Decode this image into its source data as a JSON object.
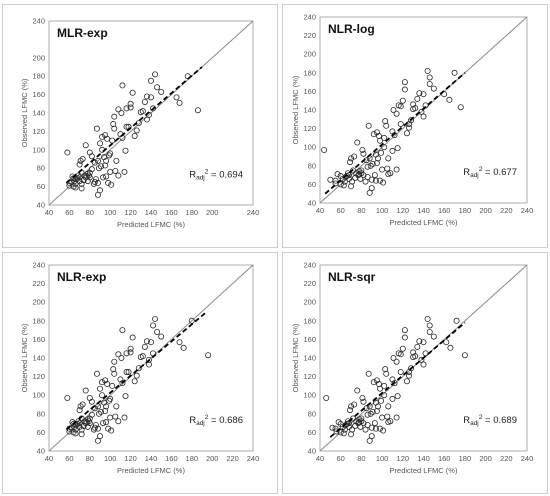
{
  "chart_data": [
    {
      "type": "scatter",
      "title": "MLR-exp",
      "xlabel": "Predicted LFMC (%)",
      "ylabel": "Observed LFMC (%)",
      "xlim": [
        40,
        240
      ],
      "ylim": [
        40,
        240
      ],
      "ticks": [
        40,
        60,
        80,
        100,
        120,
        140,
        160,
        180,
        200,
        240
      ],
      "stat_label": "R",
      "stat_sub": "adj",
      "stat_sup": "2",
      "stat_value": " = 0.694",
      "fit": [
        [
          57,
          64
        ],
        [
          190,
          190
        ]
      ],
      "x": [
        58,
        60,
        62,
        63,
        64,
        65,
        66,
        67,
        68,
        69,
        70,
        70,
        71,
        72,
        72,
        73,
        74,
        75,
        76,
        76,
        77,
        78,
        79,
        80,
        80,
        82,
        84,
        85,
        86,
        87,
        88,
        88,
        89,
        90,
        91,
        92,
        93,
        94,
        95,
        95,
        96,
        97,
        98,
        99,
        100,
        101,
        102,
        103,
        104,
        105,
        106,
        108,
        110,
        111,
        112,
        114,
        115,
        116,
        118,
        120,
        122,
        124,
        126,
        128,
        130,
        132,
        134,
        136,
        138,
        140,
        142,
        144,
        146,
        150,
        165,
        168,
        176,
        186,
        60,
        64,
        66,
        70,
        72,
        74,
        78,
        80,
        82,
        85,
        88,
        90,
        92,
        96,
        100,
        104,
        108,
        112,
        116,
        120,
        136,
        140
      ],
      "y": [
        97,
        61,
        65,
        71,
        60,
        66,
        59,
        68,
        69,
        72,
        70,
        84,
        88,
        63,
        75,
        90,
        67,
        72,
        105,
        70,
        71,
        66,
        72,
        75,
        97,
        93,
        63,
        86,
        68,
        123,
        51,
        88,
        80,
        56,
        82,
        114,
        70,
        92,
        83,
        116,
        88,
        112,
        64,
        94,
        76,
        62,
        110,
        128,
        123,
        77,
        88,
        72,
        117,
        140,
        113,
        76,
        99,
        145,
        125,
        150,
        162,
        115,
        121,
        129,
        141,
        142,
        152,
        158,
        138,
        157,
        145,
        182,
        168,
        163,
        157,
        151,
        180,
        143,
        64,
        69,
        63,
        66,
        58,
        67,
        74,
        70,
        79,
        65,
        64,
        107,
        100,
        71,
        96,
        136,
        144,
        170,
        125,
        146,
        133,
        175
      ]
    },
    {
      "type": "scatter",
      "title": "NLR-log",
      "xlabel": "Predicted LFMC (%)",
      "ylabel": "Observed LFMC (%)",
      "xlim": [
        40,
        240
      ],
      "ylim": [
        40,
        240
      ],
      "ticks": [
        40,
        60,
        80,
        100,
        120,
        140,
        160,
        180,
        200,
        220,
        240
      ],
      "stat_label": "R",
      "stat_sub": "adj",
      "stat_sup": "2",
      "stat_value": " = 0.677",
      "fit": [
        [
          45,
          50
        ],
        [
          180,
          180
        ]
      ],
      "x": [
        44,
        50,
        55,
        57,
        60,
        62,
        63,
        65,
        66,
        67,
        68,
        69,
        70,
        71,
        72,
        73,
        74,
        75,
        76,
        77,
        78,
        79,
        80,
        80,
        81,
        82,
        84,
        85,
        86,
        87,
        88,
        88,
        89,
        90,
        91,
        92,
        93,
        94,
        95,
        95,
        96,
        97,
        98,
        99,
        100,
        101,
        102,
        103,
        104,
        105,
        106,
        108,
        110,
        111,
        112,
        114,
        115,
        116,
        118,
        120,
        122,
        124,
        126,
        128,
        130,
        132,
        134,
        136,
        138,
        140,
        142,
        144,
        146,
        150,
        160,
        165,
        170,
        176,
        55,
        60,
        64,
        68,
        70,
        74,
        78,
        82,
        86,
        90,
        94,
        98,
        102,
        106,
        110,
        114,
        118,
        122,
        126,
        130,
        140,
        146
      ],
      "y": [
        97,
        65,
        61,
        71,
        60,
        66,
        59,
        68,
        69,
        72,
        70,
        84,
        88,
        63,
        75,
        90,
        67,
        72,
        105,
        70,
        71,
        66,
        72,
        75,
        97,
        93,
        63,
        86,
        68,
        123,
        51,
        88,
        80,
        56,
        82,
        114,
        70,
        92,
        83,
        116,
        88,
        112,
        64,
        94,
        76,
        62,
        110,
        128,
        123,
        77,
        88,
        72,
        117,
        140,
        113,
        76,
        99,
        145,
        125,
        150,
        162,
        115,
        121,
        129,
        141,
        142,
        152,
        158,
        138,
        157,
        145,
        182,
        168,
        163,
        157,
        151,
        180,
        143,
        64,
        69,
        63,
        66,
        58,
        67,
        74,
        70,
        79,
        65,
        64,
        107,
        100,
        71,
        96,
        136,
        144,
        170,
        125,
        146,
        133,
        175
      ]
    },
    {
      "type": "scatter",
      "title": "NLR-exp",
      "xlabel": "Predicted LFMC (%)",
      "ylabel": "Observed LFMC (%)",
      "xlim": [
        40,
        240
      ],
      "ylim": [
        40,
        240
      ],
      "ticks": [
        40,
        60,
        80,
        100,
        120,
        140,
        160,
        180,
        200,
        220,
        240
      ],
      "stat_label": "R",
      "stat_sub": "adj",
      "stat_sup": "2",
      "stat_value": " = 0.686",
      "fit": [
        [
          57,
          63
        ],
        [
          195,
          190
        ]
      ],
      "x": [
        58,
        60,
        62,
        63,
        64,
        65,
        66,
        67,
        68,
        69,
        70,
        70,
        71,
        72,
        72,
        73,
        74,
        75,
        76,
        76,
        77,
        78,
        79,
        80,
        80,
        82,
        84,
        85,
        86,
        87,
        88,
        88,
        89,
        90,
        91,
        92,
        93,
        94,
        95,
        95,
        96,
        97,
        98,
        99,
        100,
        101,
        102,
        103,
        104,
        105,
        106,
        108,
        110,
        111,
        112,
        114,
        115,
        116,
        118,
        120,
        122,
        124,
        126,
        128,
        130,
        132,
        134,
        136,
        138,
        140,
        142,
        144,
        146,
        150,
        168,
        172,
        180,
        196,
        60,
        64,
        66,
        70,
        72,
        74,
        78,
        80,
        82,
        85,
        88,
        90,
        92,
        96,
        100,
        104,
        108,
        112,
        116,
        120,
        138,
        142
      ],
      "y": [
        97,
        61,
        65,
        71,
        60,
        66,
        59,
        68,
        69,
        72,
        70,
        84,
        88,
        63,
        75,
        90,
        67,
        72,
        105,
        70,
        71,
        66,
        72,
        75,
        97,
        93,
        63,
        86,
        68,
        123,
        51,
        88,
        80,
        56,
        82,
        114,
        70,
        92,
        83,
        116,
        88,
        112,
        64,
        94,
        76,
        62,
        110,
        128,
        123,
        77,
        88,
        72,
        117,
        140,
        113,
        76,
        99,
        145,
        125,
        150,
        162,
        115,
        121,
        129,
        141,
        142,
        152,
        158,
        138,
        157,
        145,
        182,
        168,
        163,
        157,
        151,
        180,
        143,
        64,
        69,
        63,
        66,
        58,
        67,
        74,
        70,
        79,
        65,
        64,
        107,
        100,
        71,
        96,
        136,
        144,
        170,
        125,
        146,
        133,
        175
      ]
    },
    {
      "type": "scatter",
      "title": "NLR-sqr",
      "xlabel": "Predicted LFMC (%)",
      "ylabel": "Observed LFMC (%)",
      "xlim": [
        40,
        240
      ],
      "ylim": [
        40,
        240
      ],
      "ticks": [
        40,
        60,
        80,
        100,
        120,
        140,
        160,
        180,
        200,
        220,
        240
      ],
      "stat_label": "R",
      "stat_sub": "adj",
      "stat_sup": "2",
      "stat_value": " = 0.689",
      "fit": [
        [
          50,
          55
        ],
        [
          180,
          178
        ]
      ],
      "x": [
        46,
        52,
        56,
        58,
        60,
        62,
        63,
        65,
        66,
        67,
        68,
        69,
        70,
        71,
        72,
        73,
        74,
        75,
        76,
        77,
        78,
        79,
        80,
        80,
        81,
        82,
        84,
        85,
        86,
        87,
        88,
        88,
        89,
        90,
        91,
        92,
        93,
        94,
        95,
        95,
        96,
        97,
        98,
        99,
        100,
        101,
        102,
        103,
        104,
        105,
        106,
        108,
        110,
        111,
        112,
        114,
        115,
        116,
        118,
        120,
        122,
        124,
        126,
        128,
        130,
        132,
        134,
        136,
        138,
        140,
        142,
        144,
        146,
        150,
        162,
        166,
        172,
        180,
        55,
        60,
        64,
        68,
        70,
        74,
        78,
        82,
        86,
        90,
        94,
        98,
        102,
        106,
        110,
        114,
        118,
        122,
        126,
        130,
        140,
        146
      ],
      "y": [
        97,
        65,
        61,
        71,
        60,
        66,
        59,
        68,
        69,
        72,
        70,
        84,
        88,
        63,
        75,
        90,
        67,
        72,
        105,
        70,
        71,
        66,
        72,
        75,
        97,
        93,
        63,
        86,
        68,
        123,
        51,
        88,
        80,
        56,
        82,
        114,
        70,
        92,
        83,
        116,
        88,
        112,
        64,
        94,
        76,
        62,
        110,
        128,
        123,
        77,
        88,
        72,
        117,
        140,
        113,
        76,
        99,
        145,
        125,
        150,
        162,
        115,
        121,
        129,
        141,
        142,
        152,
        158,
        138,
        157,
        145,
        182,
        168,
        163,
        157,
        151,
        180,
        143,
        64,
        69,
        63,
        66,
        58,
        67,
        74,
        70,
        79,
        65,
        64,
        107,
        100,
        71,
        96,
        136,
        144,
        170,
        125,
        146,
        133,
        175
      ]
    }
  ]
}
